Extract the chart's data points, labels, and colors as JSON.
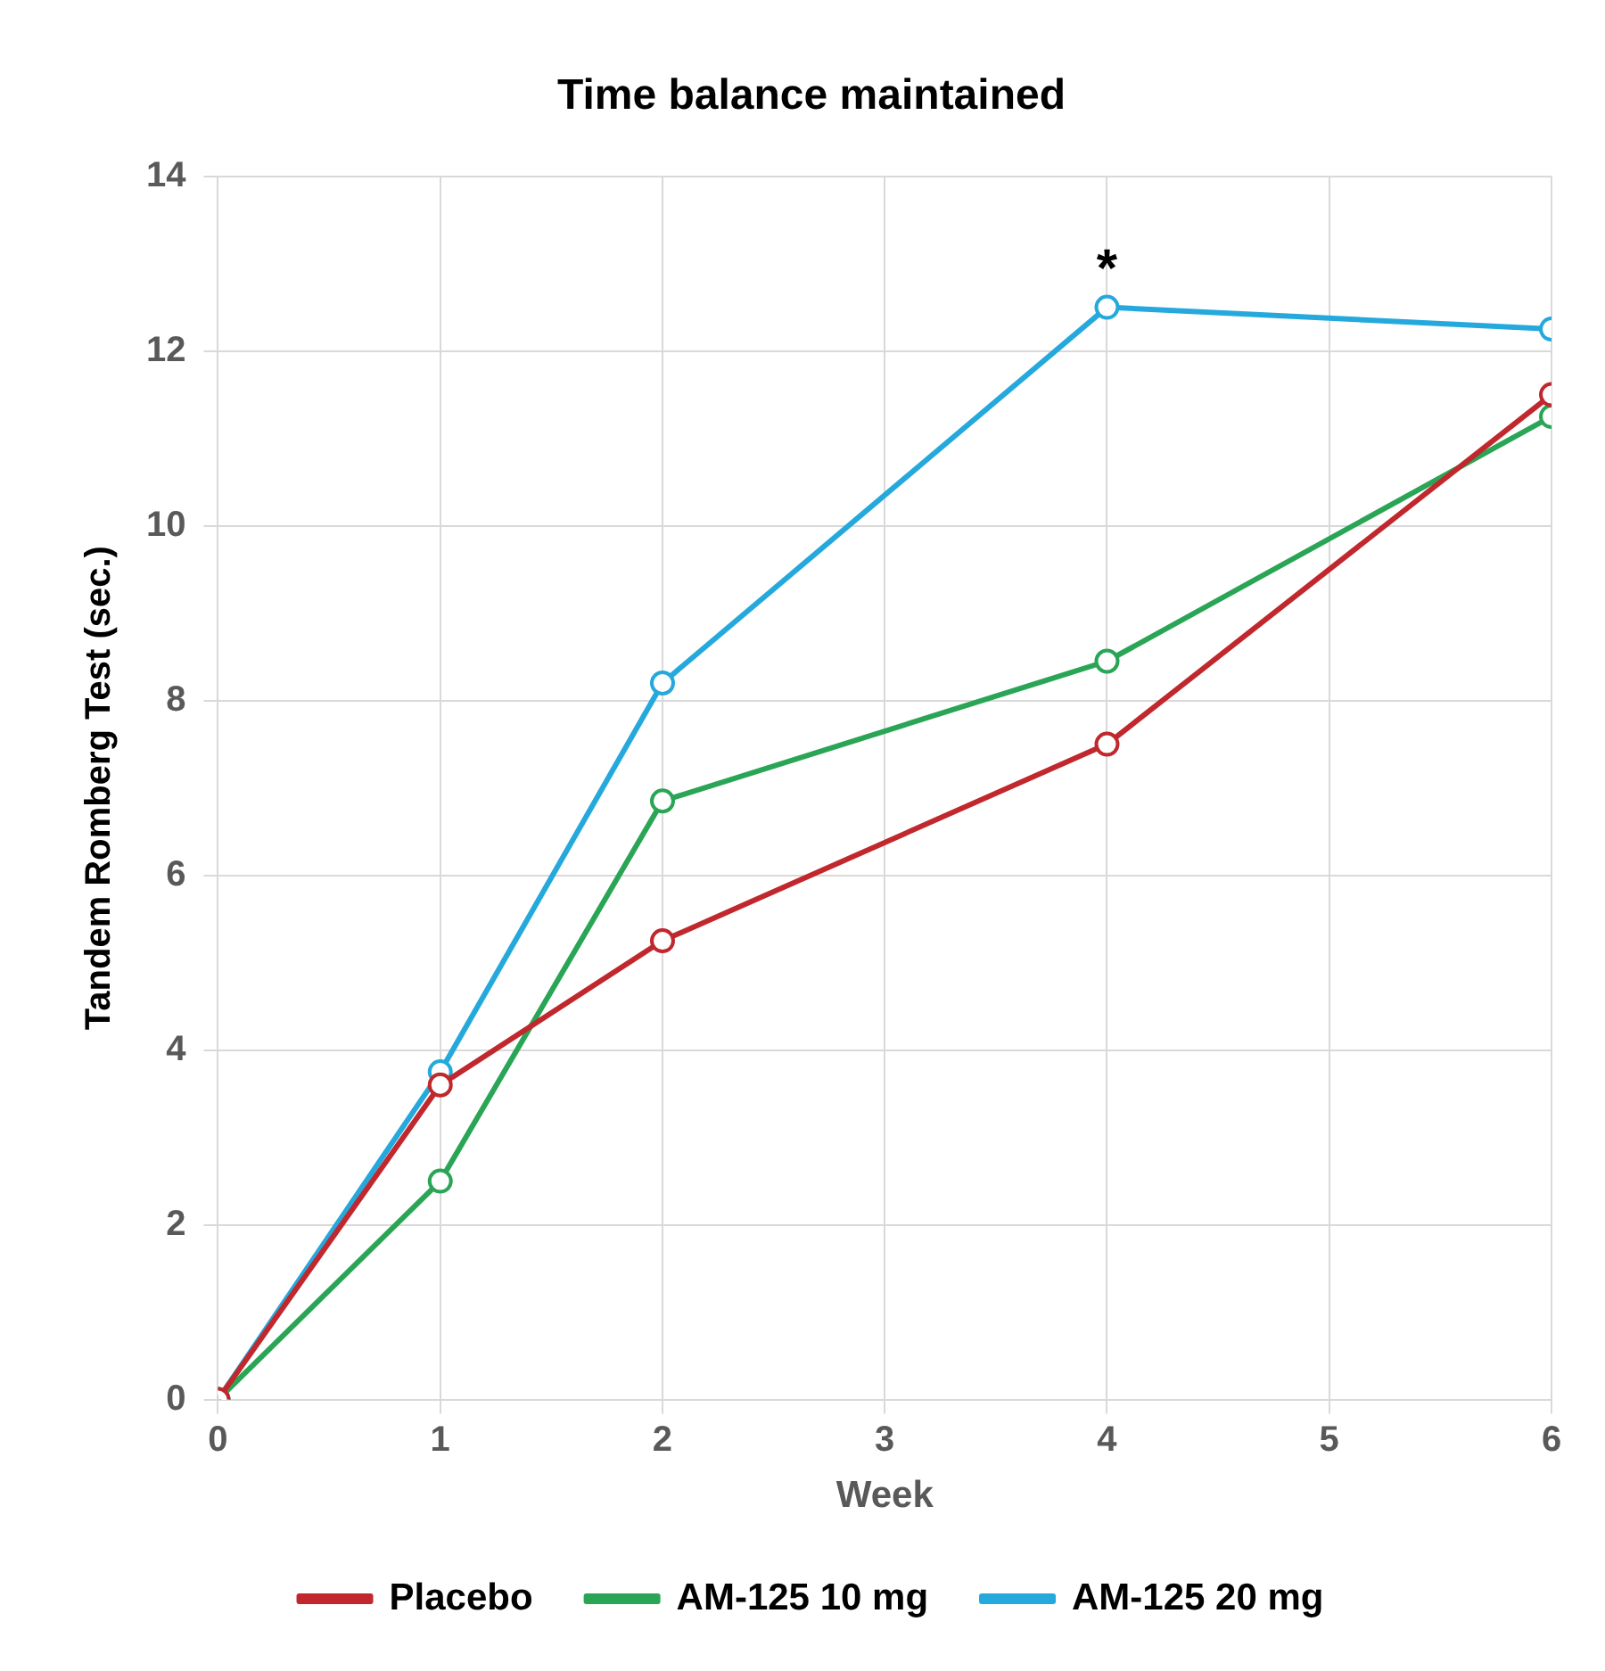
{
  "chart_data": {
    "type": "line",
    "title": "Time balance maintained",
    "xlabel": "Week",
    "ylabel": "Tandem Romberg Test (sec.)",
    "x": [
      0,
      1,
      2,
      4,
      6
    ],
    "series": [
      {
        "name": "Placebo",
        "color": "#c0282d",
        "values": [
          0,
          3.6,
          5.25,
          7.5,
          11.5
        ]
      },
      {
        "name": "AM-125 10 mg",
        "color": "#2aa556",
        "values": [
          0,
          2.5,
          6.85,
          8.45,
          11.25
        ]
      },
      {
        "name": "AM-125 20 mg",
        "color": "#25a9dc",
        "values": [
          0,
          3.75,
          8.2,
          12.5,
          12.25
        ]
      }
    ],
    "xlim": [
      0,
      6
    ],
    "xticks": [
      0,
      1,
      2,
      3,
      4,
      5,
      6
    ],
    "ylim": [
      0,
      14
    ],
    "yticks": [
      0,
      2,
      4,
      6,
      8,
      10,
      12,
      14
    ],
    "grid": true,
    "legend": "bottom",
    "marker": "circle",
    "line_style": "solid",
    "annotations": [
      {
        "text": "*",
        "x": 4,
        "y": 12.5
      }
    ]
  }
}
